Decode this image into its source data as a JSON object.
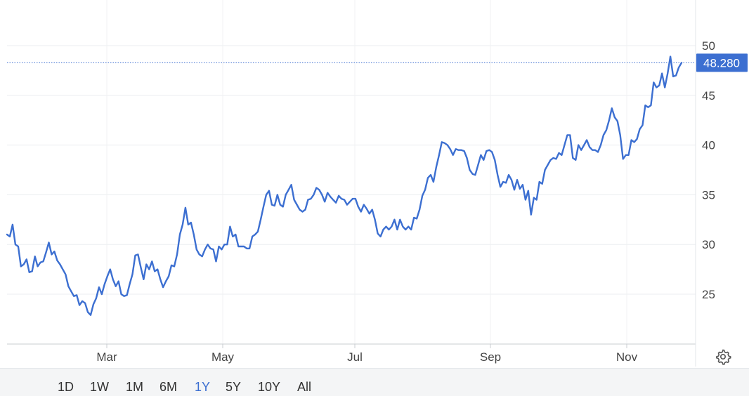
{
  "chart_data": {
    "type": "line",
    "x_ticks": [
      "Mar",
      "May",
      "Jul",
      "Sep",
      "Nov"
    ],
    "y_ticks": [
      25,
      30,
      35,
      40,
      45,
      50
    ],
    "ylim": [
      20,
      52
    ],
    "last_value_label": "48.280",
    "last_value": 48.28,
    "grid": true,
    "line_color": "#3c6fd1",
    "series": [
      {
        "values": [
          31.0,
          30.8,
          32.0,
          30.0,
          29.8,
          27.8,
          28.0,
          28.5,
          27.2,
          27.3,
          28.8,
          27.8,
          28.2,
          28.3,
          29.2,
          30.2,
          29.0,
          29.3,
          28.4,
          28.0,
          27.5,
          27.0,
          25.8,
          25.3,
          24.8,
          24.9,
          23.9,
          24.3,
          24.1,
          23.2,
          22.9,
          24.0,
          24.6,
          25.7,
          25.0,
          26.0,
          26.8,
          27.5,
          26.5,
          25.8,
          26.3,
          25.0,
          24.8,
          24.9,
          26.0,
          27.0,
          28.9,
          29.0,
          27.7,
          26.5,
          28.0,
          27.5,
          28.3,
          27.3,
          27.5,
          26.5,
          25.7,
          26.3,
          26.8,
          27.9,
          27.8,
          29.0,
          31.0,
          32.0,
          33.7,
          32.0,
          32.2,
          31.0,
          29.5,
          29.0,
          28.8,
          29.5,
          30.0,
          29.6,
          29.5,
          28.3,
          29.8,
          29.5,
          30.0,
          30.0,
          31.8,
          30.8,
          31.0,
          29.8,
          29.8,
          29.8,
          29.6,
          29.6,
          30.8,
          31.0,
          31.3,
          32.5,
          33.8,
          35.0,
          35.4,
          34.0,
          33.9,
          35.0,
          34.0,
          33.8,
          35.0,
          35.5,
          36.0,
          34.5,
          34.0,
          33.5,
          33.3,
          33.5,
          34.5,
          34.6,
          35.0,
          35.7,
          35.5,
          35.0,
          34.3,
          35.2,
          34.8,
          34.5,
          34.2,
          34.9,
          34.6,
          34.5,
          34.0,
          34.3,
          34.6,
          34.6,
          33.8,
          33.3,
          34.0,
          33.6,
          33.1,
          33.5,
          32.5,
          31.1,
          30.8,
          31.5,
          31.8,
          31.5,
          31.8,
          32.5,
          31.5,
          32.5,
          31.8,
          31.5,
          31.8,
          31.5,
          32.7,
          32.6,
          33.5,
          34.9,
          35.5,
          36.7,
          37.0,
          36.3,
          37.8,
          39.0,
          40.3,
          40.2,
          40.0,
          39.6,
          39.0,
          39.6,
          39.5,
          39.5,
          39.4,
          38.7,
          37.5,
          37.1,
          37.0,
          38.0,
          39.0,
          38.5,
          39.4,
          39.5,
          39.3,
          38.5,
          37.0,
          35.8,
          36.3,
          36.2,
          37.0,
          36.5,
          35.5,
          36.5,
          35.6,
          36.0,
          34.5,
          35.4,
          33.0,
          34.7,
          34.5,
          36.3,
          36.1,
          37.5,
          38.0,
          38.5,
          38.7,
          38.6,
          39.2,
          39.0,
          40.0,
          41.0,
          41.0,
          38.7,
          38.5,
          40.0,
          39.5,
          40.0,
          40.5,
          39.8,
          39.5,
          39.5,
          39.3,
          40.0,
          41.0,
          41.5,
          42.5,
          43.7,
          42.8,
          42.4,
          41.0,
          38.6,
          39.0,
          39.0,
          40.5,
          40.3,
          40.6,
          41.6,
          42.0,
          44.0,
          43.8,
          44.0,
          46.3,
          45.8,
          46.0,
          47.2,
          45.8,
          47.2,
          48.9,
          46.9,
          47.0,
          47.8,
          48.28
        ]
      }
    ]
  },
  "controls": {
    "ranges": [
      {
        "label": "1D",
        "active": false
      },
      {
        "label": "1W",
        "active": false
      },
      {
        "label": "1M",
        "active": false
      },
      {
        "label": "6M",
        "active": false
      },
      {
        "label": "1Y",
        "active": true
      },
      {
        "label": "5Y",
        "active": false
      },
      {
        "label": "10Y",
        "active": false
      },
      {
        "label": "All",
        "active": false
      }
    ],
    "settings_icon": "gear-icon"
  }
}
